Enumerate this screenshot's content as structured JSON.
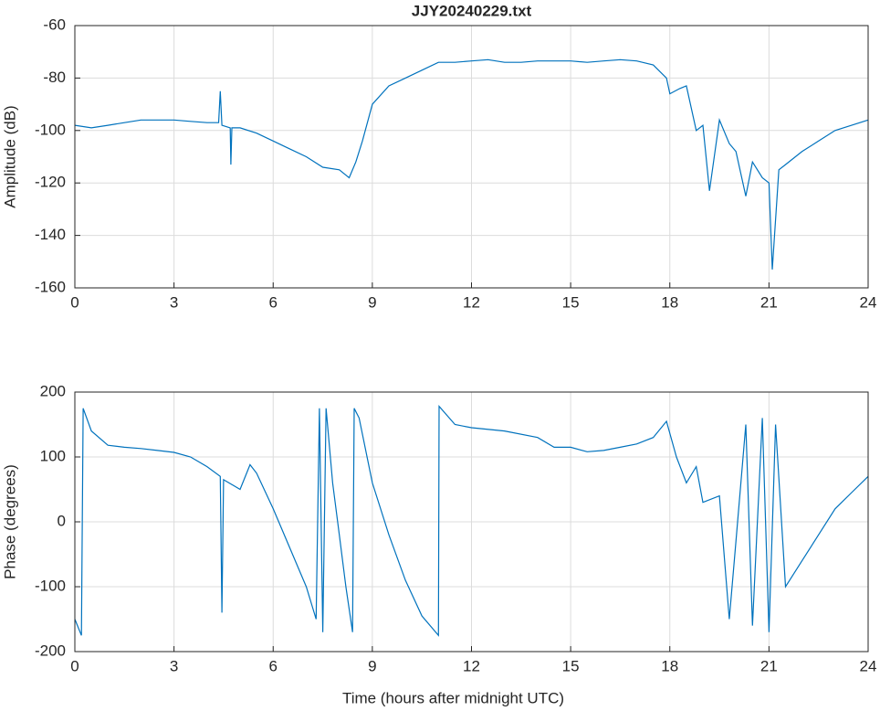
{
  "chart_data": [
    {
      "type": "line",
      "title": "JJY20240229.txt",
      "ylabel": "Amplitude (dB)",
      "x": [
        0,
        0.5,
        1,
        1.5,
        2,
        2.5,
        3,
        3.5,
        4,
        4.35,
        4.4,
        4.45,
        4.7,
        4.72,
        4.75,
        5,
        5.5,
        6,
        6.5,
        7,
        7.5,
        8,
        8.3,
        8.5,
        8.7,
        9,
        9.5,
        10,
        10.5,
        11,
        11.5,
        12,
        12.5,
        13,
        13.5,
        14,
        14.5,
        15,
        15.5,
        16,
        16.5,
        17,
        17.5,
        17.9,
        18,
        18.3,
        18.5,
        18.8,
        19,
        19.2,
        19.5,
        19.8,
        20,
        20.3,
        20.5,
        20.8,
        21,
        21.1,
        21.3,
        21.5,
        22,
        22.5,
        23,
        23.5,
        24
      ],
      "series": [
        {
          "name": "Amplitude",
          "color": "#0072bd",
          "values": [
            -98,
            -99,
            -98,
            -97,
            -96,
            -96,
            -96,
            -96.5,
            -97,
            -97,
            -85,
            -98,
            -99,
            -113,
            -99,
            -99,
            -101,
            -104,
            -107,
            -110,
            -114,
            -115,
            -118,
            -112,
            -104,
            -90,
            -83,
            -80,
            -77,
            -74,
            -74,
            -73.5,
            -73,
            -74,
            -74,
            -73.5,
            -73.5,
            -73.5,
            -74,
            -73.5,
            -73,
            -73.5,
            -75,
            -80,
            -86,
            -84,
            -83,
            -100,
            -98,
            -123,
            -96,
            -105,
            -108,
            -125,
            -112,
            -118,
            -120,
            -153,
            -115,
            -113,
            -108,
            -104,
            -100,
            -98,
            -96
          ]
        }
      ],
      "xlim": [
        0,
        24
      ],
      "xticks": [
        0,
        3,
        6,
        9,
        12,
        15,
        18,
        21,
        24
      ],
      "ylim": [
        -160,
        -60
      ],
      "yticks": [
        -60,
        -80,
        -100,
        -120,
        -140,
        -160
      ],
      "grid": true
    },
    {
      "type": "line",
      "xlabel": "Time (hours after midnight UTC)",
      "ylabel": "Phase (degrees)",
      "x": [
        0,
        0.2,
        0.25,
        0.5,
        1,
        1.5,
        2,
        2.5,
        3,
        3.5,
        4,
        4.4,
        4.45,
        4.5,
        5,
        5.3,
        5.5,
        6,
        6.5,
        7,
        7.3,
        7.4,
        7.5,
        7.6,
        7.8,
        8,
        8.2,
        8.4,
        8.45,
        8.6,
        9,
        9.5,
        10,
        10.5,
        11,
        11.02,
        11.5,
        12,
        13,
        14,
        14.5,
        15,
        15.5,
        16,
        16.5,
        17,
        17.5,
        17.9,
        18.2,
        18.5,
        18.8,
        19,
        19.5,
        19.8,
        20,
        20.3,
        20.5,
        20.8,
        21,
        21.2,
        21.5,
        22,
        22.5,
        23,
        23.5,
        24
      ],
      "series": [
        {
          "name": "Phase",
          "color": "#0072bd",
          "values": [
            -150,
            -175,
            175,
            140,
            118,
            115,
            113,
            110,
            107,
            100,
            85,
            70,
            -140,
            65,
            50,
            88,
            75,
            20,
            -40,
            -100,
            -150,
            175,
            -170,
            175,
            60,
            -20,
            -100,
            -170,
            175,
            160,
            60,
            -20,
            -90,
            -145,
            -175,
            178,
            150,
            145,
            140,
            130,
            115,
            115,
            108,
            110,
            115,
            120,
            130,
            155,
            100,
            60,
            85,
            30,
            40,
            -150,
            -30,
            150,
            -160,
            160,
            -170,
            150,
            -100,
            -60,
            -20,
            20,
            45,
            70
          ]
        }
      ],
      "xlim": [
        0,
        24
      ],
      "xticks": [
        0,
        3,
        6,
        9,
        12,
        15,
        18,
        21,
        24
      ],
      "ylim": [
        -200,
        200
      ],
      "yticks": [
        200,
        100,
        0,
        -100,
        -200
      ],
      "grid": true
    }
  ]
}
